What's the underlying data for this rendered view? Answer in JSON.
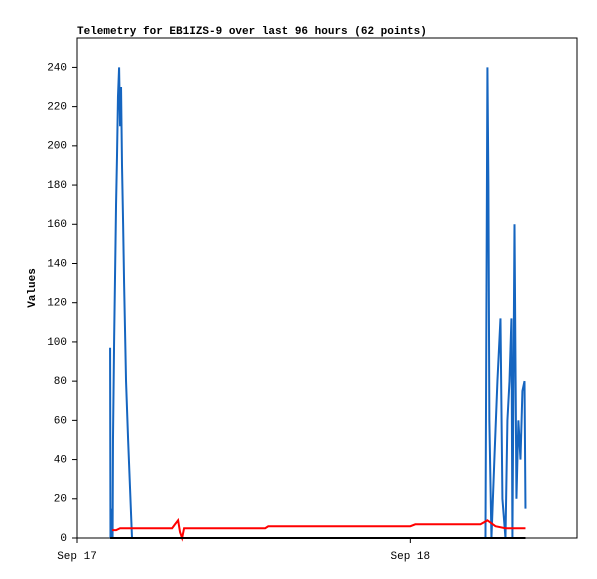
{
  "chart_data": {
    "type": "line",
    "title": "Telemetry for EB1IZS-9 over last 96 hours (62 points)",
    "y_label": "Values",
    "xlim": [
      0,
      36
    ],
    "xticks": [
      {
        "value": 0,
        "label": "Sep 17"
      },
      {
        "value": 24,
        "label": "Sep 18"
      }
    ],
    "ylim": [
      0,
      255
    ],
    "yticks": [
      0,
      20,
      40,
      60,
      80,
      100,
      120,
      140,
      160,
      180,
      200,
      220,
      240
    ],
    "series": [
      {
        "color": "#1565c0",
        "x": [
          2.38,
          2.41,
          2.45,
          2.56,
          2.59,
          2.67,
          2.74,
          2.81,
          2.88,
          2.95,
          3.03,
          3.1,
          3.17,
          3.24,
          3.32,
          3.39,
          3.46,
          3.53,
          3.68,
          3.82,
          3.96,
          29.41,
          29.48,
          29.55,
          29.62,
          29.69,
          29.84,
          30.05,
          30.27,
          30.49,
          30.63,
          30.85,
          30.99,
          31.14,
          31.28,
          31.35,
          31.5,
          31.64,
          31.78,
          31.93,
          32.07,
          32.22,
          32.29
        ],
        "values": [
          97,
          0,
          15,
          0,
          50,
          100,
          135,
          170,
          195,
          225,
          240,
          210,
          230,
          190,
          160,
          130,
          105,
          80,
          50,
          25,
          0,
          0,
          120,
          240,
          180,
          60,
          0,
          40,
          80,
          112,
          20,
          0,
          60,
          80,
          112,
          0,
          160,
          20,
          60,
          40,
          75,
          80,
          15
        ]
      },
      {
        "color": "#ff0000",
        "x": [
          2.52,
          2.81,
          3.1,
          6.85,
          7.06,
          7.28,
          7.42,
          7.57,
          7.71,
          8.14,
          13.55,
          13.77,
          24.0,
          24.36,
          29.05,
          29.55,
          30.13,
          30.85,
          32.29
        ],
        "values": [
          4,
          4,
          5,
          5,
          7,
          9,
          3,
          0,
          5,
          5,
          5,
          6,
          6,
          7,
          7,
          9,
          6,
          5,
          5
        ]
      },
      {
        "color": "#000000",
        "x": [
          2.38,
          32.29
        ],
        "values": [
          0,
          0
        ]
      }
    ]
  }
}
